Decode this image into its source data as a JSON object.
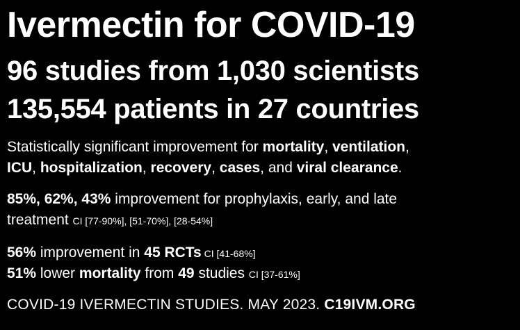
{
  "headline": {
    "title": "Ivermectin for COVID-19",
    "line2": "96 studies from 1,030 scientists",
    "line3": "135,554 patients in 27 countries"
  },
  "significance": {
    "prefix": "Statistically significant improvement for ",
    "mortality": "mortality",
    "sep1": ", ",
    "ventilation": "ventilation",
    "sep2": ",",
    "icu": "ICU",
    "sep3": ", ",
    "hospitalization": "hospitalization",
    "sep4": ", ",
    "recovery": "recovery",
    "sep5": ", ",
    "cases": "cases",
    "sep6": ", and ",
    "viral_clearance": "viral clearance",
    "end": "."
  },
  "treatment": {
    "percents": "85%, 62%, 43%",
    "text1": " improvement for prophylaxis, early, and late",
    "text2": "treatment ",
    "ci": "CI [77-90%], [51-70%], [28-54%]"
  },
  "rcts": {
    "percent": "56%",
    "text": " improvement in ",
    "count": "45 RCTs",
    "ci": " CI [41-68%]"
  },
  "mortality": {
    "percent": "51%",
    "text1": " lower ",
    "word": "mortality",
    "text2": " from ",
    "count": "49",
    "text3": " studies ",
    "ci": "CI [37-61%]"
  },
  "footer": {
    "text": "COVID-19 IVERMECTIN STUDIES. MAY 2023. ",
    "site": "C19IVM.ORG"
  }
}
